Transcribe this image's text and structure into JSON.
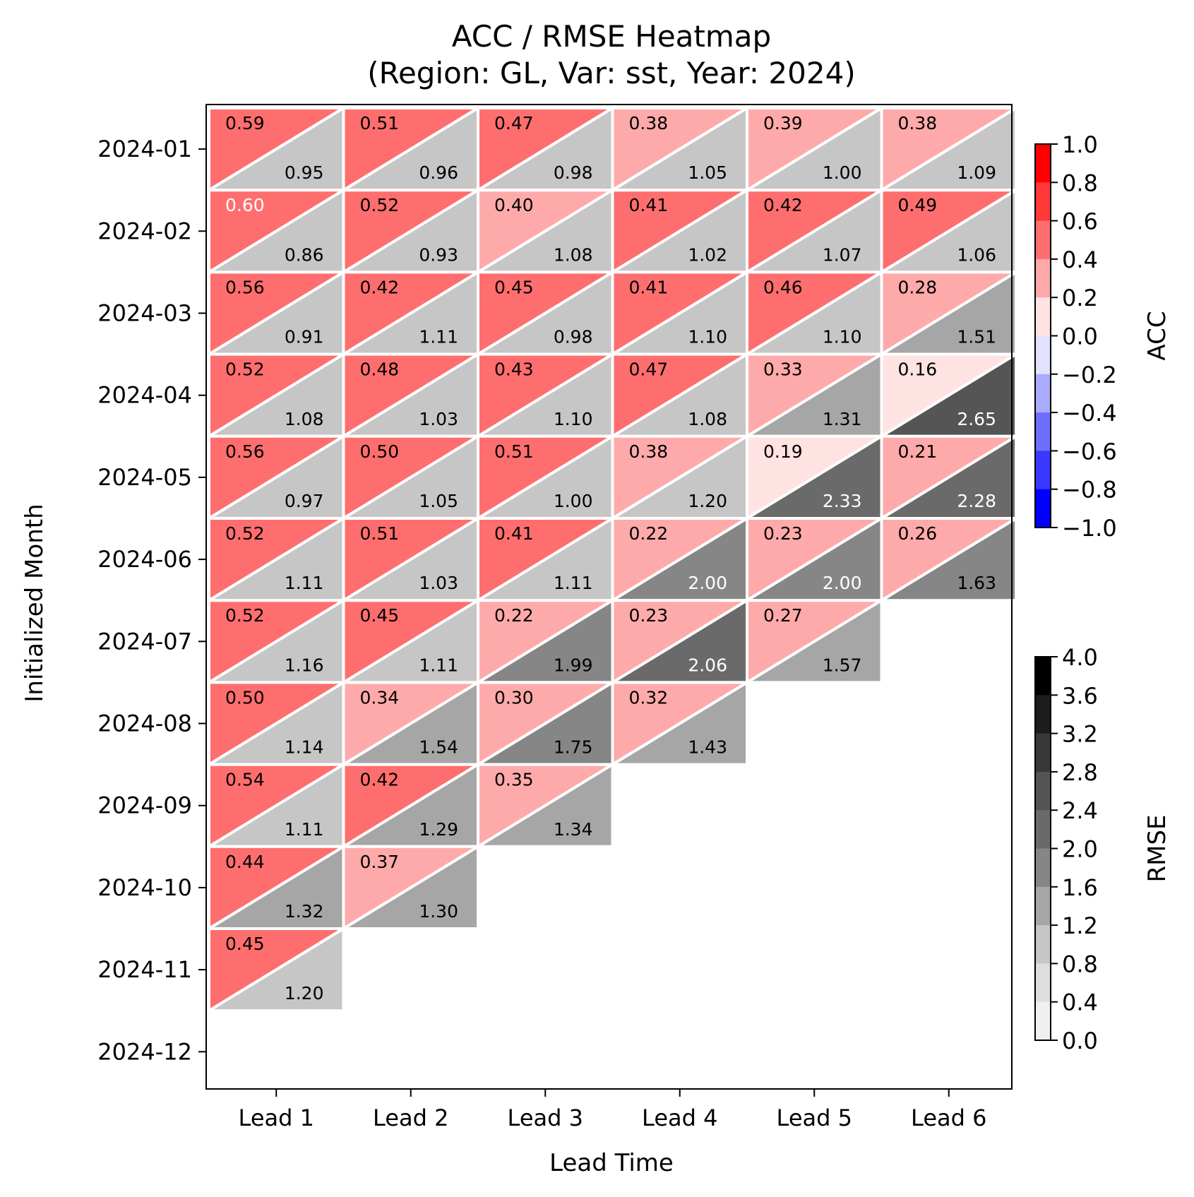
{
  "chart_data": {
    "type": "heatmap",
    "title": "ACC / RMSE Heatmap",
    "subtitle": "(Region: GL, Var: sst, Year: 2024)",
    "xlabel": "Lead Time",
    "ylabel": "Initialized Month",
    "x_categories": [
      "Lead 1",
      "Lead 2",
      "Lead 3",
      "Lead 4",
      "Lead 5",
      "Lead 6"
    ],
    "y_categories": [
      "2024-01",
      "2024-02",
      "2024-03",
      "2024-04",
      "2024-05",
      "2024-06",
      "2024-07",
      "2024-08",
      "2024-09",
      "2024-10",
      "2024-11",
      "2024-12"
    ],
    "acc": [
      [
        "0.59",
        "0.51",
        "0.47",
        "0.38",
        "0.39",
        "0.38"
      ],
      [
        "0.60",
        "0.52",
        "0.40",
        "0.41",
        "0.42",
        "0.49"
      ],
      [
        "0.56",
        "0.42",
        "0.45",
        "0.41",
        "0.46",
        "0.28"
      ],
      [
        "0.52",
        "0.48",
        "0.43",
        "0.47",
        "0.33",
        "0.16"
      ],
      [
        "0.56",
        "0.50",
        "0.51",
        "0.38",
        "0.19",
        "0.21"
      ],
      [
        "0.52",
        "0.51",
        "0.41",
        "0.22",
        "0.23",
        "0.26"
      ],
      [
        "0.52",
        "0.45",
        "0.22",
        "0.23",
        "0.27",
        null
      ],
      [
        "0.50",
        "0.34",
        "0.30",
        "0.32",
        null,
        null
      ],
      [
        "0.54",
        "0.42",
        "0.35",
        null,
        null,
        null
      ],
      [
        "0.44",
        "0.37",
        null,
        null,
        null,
        null
      ],
      [
        "0.45",
        null,
        null,
        null,
        null,
        null
      ],
      [
        null,
        null,
        null,
        null,
        null,
        null
      ]
    ],
    "rmse": [
      [
        "0.95",
        "0.96",
        "0.98",
        "1.05",
        "1.00",
        "1.09"
      ],
      [
        "0.86",
        "0.93",
        "1.08",
        "1.02",
        "1.07",
        "1.06"
      ],
      [
        "0.91",
        "1.11",
        "0.98",
        "1.10",
        "1.10",
        "1.51"
      ],
      [
        "1.08",
        "1.03",
        "1.10",
        "1.08",
        "1.31",
        "2.65"
      ],
      [
        "0.97",
        "1.05",
        "1.00",
        "1.20",
        "2.33",
        "2.28"
      ],
      [
        "1.11",
        "1.03",
        "1.11",
        "2.00",
        "2.00",
        "1.63"
      ],
      [
        "1.16",
        "1.11",
        "1.99",
        "2.06",
        "1.57",
        null
      ],
      [
        "1.14",
        "1.54",
        "1.75",
        "1.43",
        null,
        null
      ],
      [
        "1.11",
        "1.29",
        "1.34",
        null,
        null,
        null
      ],
      [
        "1.32",
        "1.30",
        null,
        null,
        null,
        null
      ],
      [
        "1.20",
        null,
        null,
        null,
        null,
        null
      ],
      [
        null,
        null,
        null,
        null,
        null,
        null
      ]
    ],
    "colorbars": [
      {
        "label": "ACC",
        "range": [
          -1.0,
          1.0
        ],
        "ticks": [
          "1.0",
          "0.8",
          "0.6",
          "0.4",
          "0.2",
          "0.0",
          "−0.2",
          "−0.4",
          "−0.6",
          "−0.8",
          "−1.0"
        ],
        "tick_values": [
          1.0,
          0.8,
          0.6,
          0.4,
          0.2,
          0.0,
          -0.2,
          -0.4,
          -0.6,
          -0.8,
          -1.0
        ],
        "bands": [
          "#ff0000",
          "#ff3838",
          "#ff6e6e",
          "#ffaaaa",
          "#ffe2e2",
          "#e2e2ff",
          "#aaaaff",
          "#6e6eff",
          "#3838ff",
          "#0000ff"
        ]
      },
      {
        "label": "RMSE",
        "range": [
          0.0,
          4.0
        ],
        "ticks": [
          "4.0",
          "3.6",
          "3.2",
          "2.8",
          "2.4",
          "2.0",
          "1.6",
          "1.2",
          "0.8",
          "0.4",
          "0.0"
        ],
        "tick_values": [
          4.0,
          3.6,
          3.2,
          2.8,
          2.4,
          2.0,
          1.6,
          1.2,
          0.8,
          0.4,
          0.0
        ],
        "bands": [
          "#000000",
          "#1c1c1c",
          "#383838",
          "#555555",
          "#6a6a6a",
          "#868686",
          "#a6a6a6",
          "#c6c6c6",
          "#dedede",
          "#f0f0f0"
        ]
      }
    ],
    "grid": false,
    "legend": "colorbars-right"
  }
}
